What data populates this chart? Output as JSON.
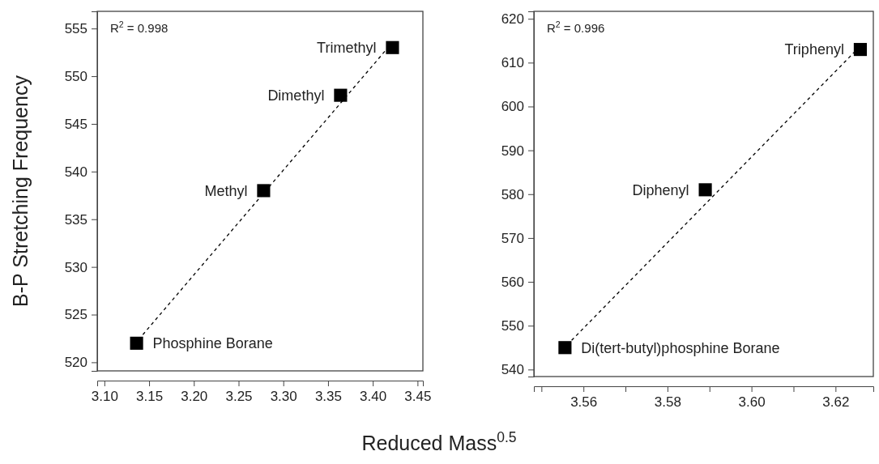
{
  "chart_data": [
    {
      "type": "scatter",
      "ylabel": "B-P Stretching Frequency",
      "xlabel": "Reduced Mass$^{0.5}$",
      "xlim": [
        3.092,
        3.456
      ],
      "ylim": [
        519.1,
        556.8
      ],
      "xticks": [
        {
          "value": 3.1,
          "label": "3.10"
        },
        {
          "value": 3.15,
          "label": "3.15"
        },
        {
          "value": 3.2,
          "label": "3.20"
        },
        {
          "value": 3.25,
          "label": "3.25"
        },
        {
          "value": 3.3,
          "label": "3.30"
        },
        {
          "value": 3.35,
          "label": "3.35"
        },
        {
          "value": 3.4,
          "label": "3.40"
        },
        {
          "value": 3.45,
          "label": "3.45"
        }
      ],
      "yticks": [
        520,
        525,
        530,
        535,
        540,
        545,
        550,
        555
      ],
      "grid": false,
      "marker": "square",
      "series": [
        {
          "type": "line",
          "color": "#000000",
          "line_style": "dashed",
          "marker": "none",
          "x": [
            3.143,
            3.417
          ],
          "values": [
            522.9,
            553.0
          ]
        },
        {
          "color": "#000000",
          "x": [
            3.136,
            3.278,
            3.364,
            3.422
          ],
          "values": [
            522,
            538,
            548,
            553
          ]
        }
      ],
      "annotations": [
        "R$^{2}$ = 0.998",
        {
          "text": "Phosphine Borane",
          "x": 3.136,
          "y": 522
        },
        {
          "text": "Methyl",
          "x": 3.278,
          "y": 538
        },
        {
          "text": "Dimethyl",
          "x": 3.364,
          "y": 548
        },
        {
          "text": "Trimethyl",
          "x": 3.422,
          "y": 553
        }
      ]
    },
    {
      "type": "scatter",
      "xlim": [
        3.5482,
        3.629
      ],
      "ylim": [
        538.4,
        621.7
      ],
      "xticks": [
        {
          "value": 3.55,
          "label": null
        },
        {
          "value": 3.56,
          "label": "3.56"
        },
        {
          "value": 3.57,
          "label": null
        },
        {
          "value": 3.58,
          "label": "3.58"
        },
        {
          "value": 3.59,
          "label": null
        },
        {
          "value": 3.6,
          "label": "3.60"
        },
        {
          "value": 3.61,
          "label": null
        },
        {
          "value": 3.62,
          "label": "3.62"
        }
      ],
      "yticks": [
        540,
        550,
        560,
        570,
        580,
        590,
        600,
        610,
        620
      ],
      "grid": false,
      "marker": "square",
      "series": [
        {
          "type": "line",
          "color": "#000000",
          "line_style": "dashed",
          "marker": "none",
          "x": [
            3.5561,
            3.625
          ],
          "values": [
            545.6,
            612.9
          ]
        },
        {
          "color": "#000000",
          "x": [
            3.5556,
            3.589,
            3.6259
          ],
          "values": [
            545,
            581,
            613
          ]
        }
      ],
      "annotations": [
        "R$^{2}$ = 0.996",
        {
          "text": "Di(tert-butyl)phosphine Borane",
          "x": 3.5556,
          "y": 545
        },
        {
          "text": "Diphenyl",
          "x": 3.589,
          "y": 581
        },
        {
          "text": "Triphenyl",
          "x": 3.6259,
          "y": 613
        }
      ]
    }
  ]
}
